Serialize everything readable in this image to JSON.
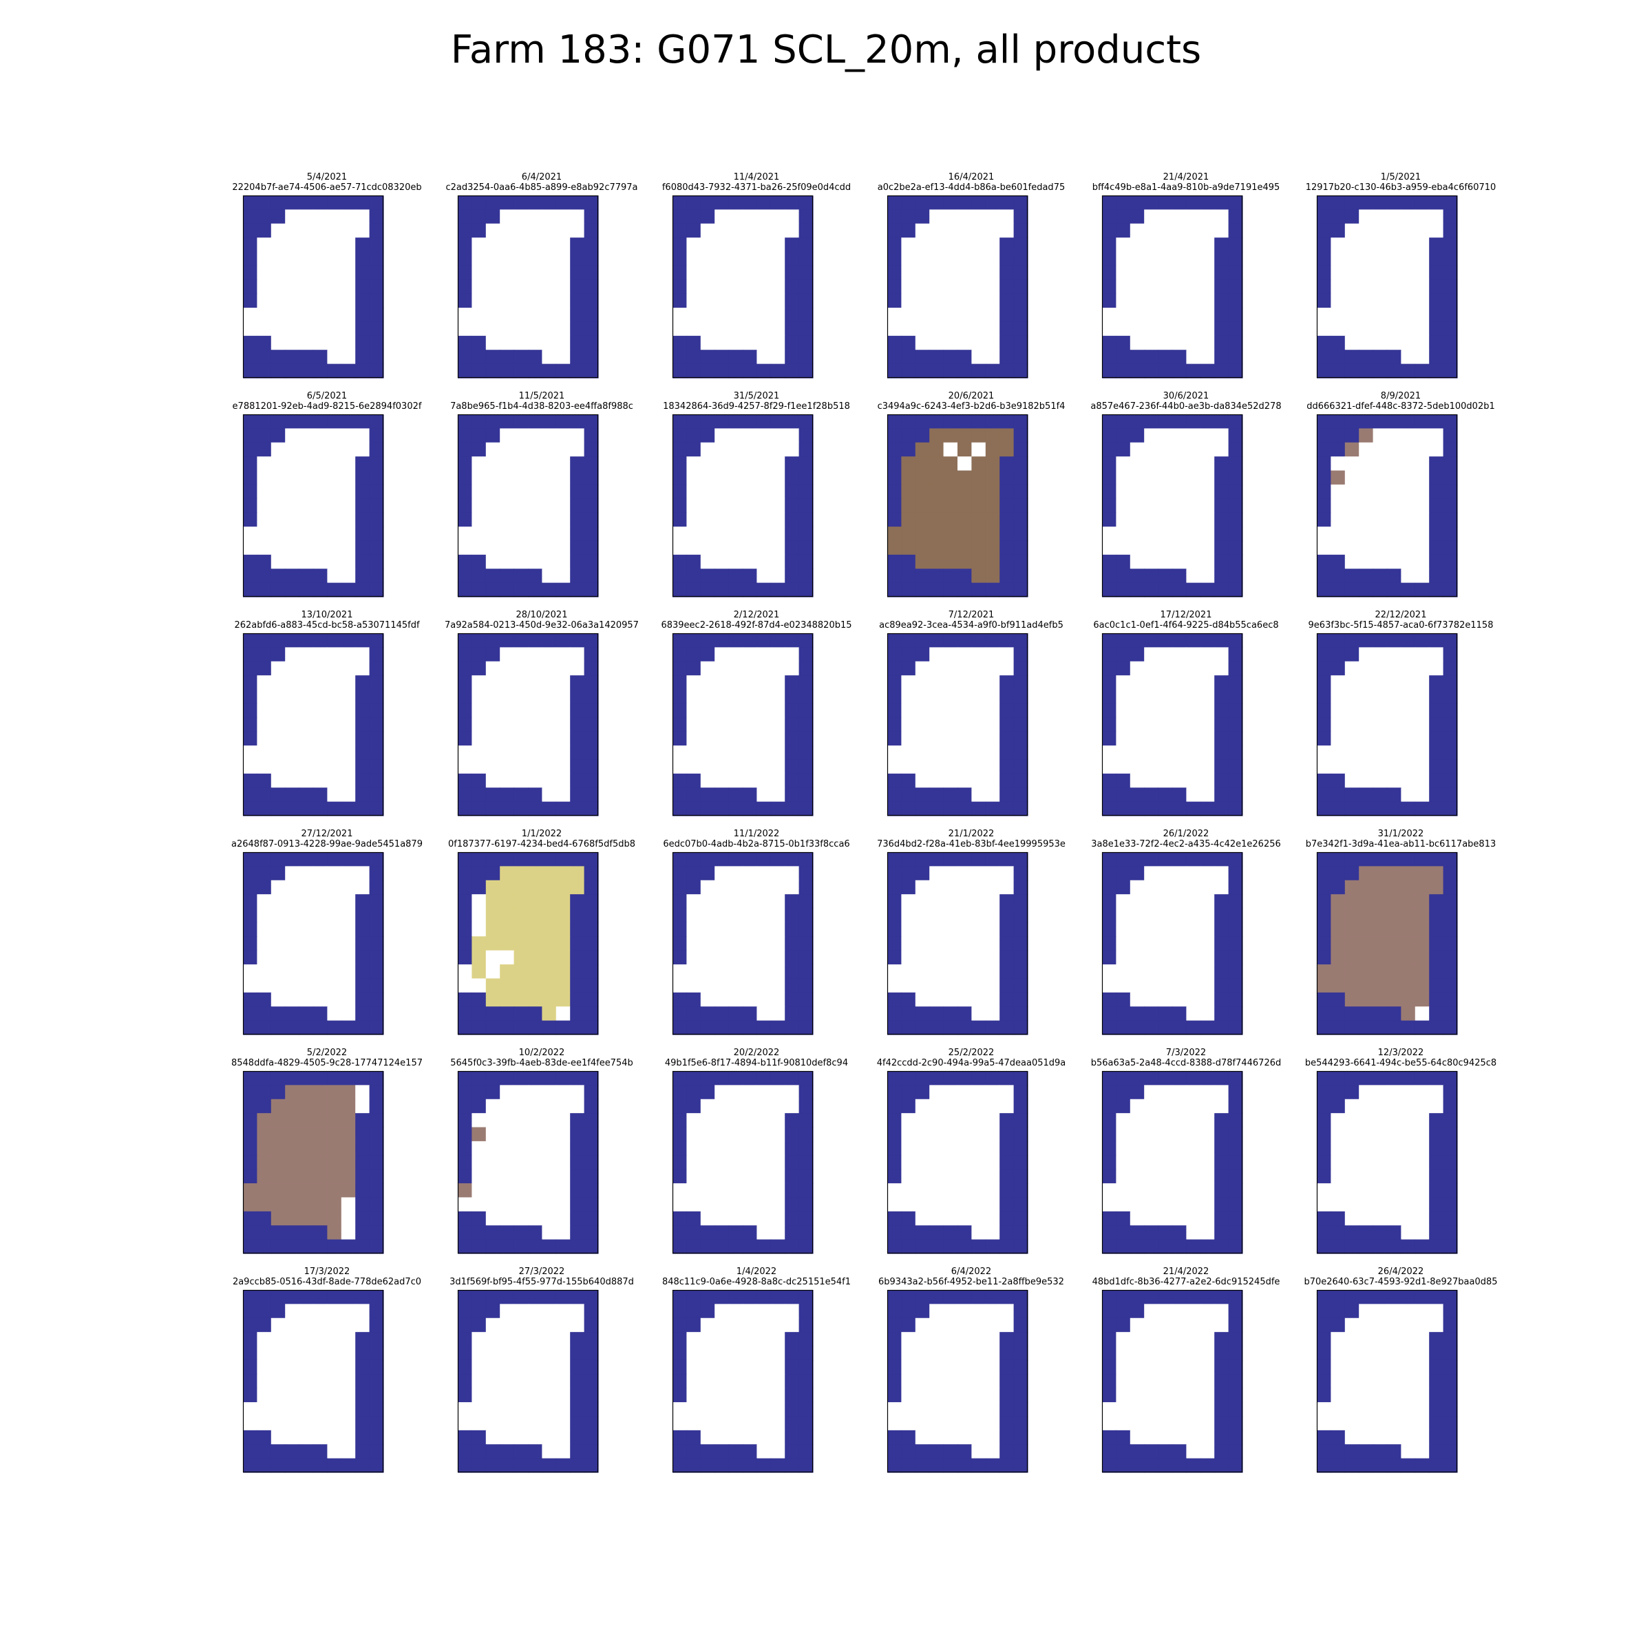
{
  "figure": {
    "title": "Farm 183: G071 SCL_20m, all products"
  },
  "chart_data": {
    "type": "heatmap",
    "grid": {
      "rows": 13,
      "cols": 10
    },
    "colors": {
      "background": "#ffffff",
      "nodata_outside_field": "#353597",
      "cloud_shadow_dark": "#8d6f57",
      "cloud_shadow_light": "#9a7b72",
      "high_probability_cloud": "#dcd287",
      "clear_inside_field": "#ffffff",
      "frame": "#000000"
    },
    "base_mask": [
      "BBBBBBBBBB",
      "BBBWWWWWWB",
      "BBWWWWWWWB",
      "BWWWWWWWBB",
      "BWWWWWWWBB",
      "BWWWWWWWBB",
      "BWWWWWWWBB",
      "BWWWWWWWBB",
      "WWWWWWWWBB",
      "WWWWWWWWBB",
      "BBWWWWWWBB",
      "BBBBBBWWBB",
      "BBBBBBBBBB"
    ],
    "panels": [
      {
        "date": "5/4/2021",
        "id": "22204b7f-ae74-4506-ae57-71cdc08320eb"
      },
      {
        "date": "6/4/2021",
        "id": "c2ad3254-0aa6-4b85-a899-e8ab92c7797a"
      },
      {
        "date": "11/4/2021",
        "id": "f6080d43-7932-4371-ba26-25f09e0d4cdd"
      },
      {
        "date": "16/4/2021",
        "id": "a0c2be2a-ef13-4dd4-b86a-be601fedad75"
      },
      {
        "date": "21/4/2021",
        "id": "bff4c49b-e8a1-4aa9-810b-a9de7191e495"
      },
      {
        "date": "1/5/2021",
        "id": "12917b20-c130-46b3-a959-eba4c6f60710"
      },
      {
        "date": "6/5/2021",
        "id": "e7881201-92eb-4ad9-8215-6e2894f0302f"
      },
      {
        "date": "11/5/2021",
        "id": "7a8be965-f1b4-4d38-8203-ee4ffa8f988c"
      },
      {
        "date": "31/5/2021",
        "id": "18342864-36d9-4257-8f29-f1ee1f28b518"
      },
      {
        "date": "20/6/2021",
        "id": "c3494a9c-6243-4ef3-b2d6-b3e9182b51f4",
        "mask": [
          "BBBBBBBBBB",
          "BBBCCCCCCB",
          "BBCCWCWCCB",
          "BCCCCWCCBB",
          "BCCCCCCCBB",
          "BCCCCCCCBB",
          "BCCCCCCCBB",
          "BCCCCCCCBB",
          "CCCCCCCCBB",
          "CCCCCCCCBB",
          "BBCCCCCCBB",
          "BBBBBBCCBB",
          "BBBBBBBBBB"
        ]
      },
      {
        "date": "30/6/2021",
        "id": "a857e467-236f-44b0-ae3b-da834e52d278"
      },
      {
        "date": "8/9/2021",
        "id": "dd666321-dfef-448c-8372-5deb100d02b1",
        "mask": [
          "BBBBBBBBBB",
          "BBBSWWWWWB",
          "BBSWWWWWWB",
          "BWWWWWWWBB",
          "BSWWWWWWBB",
          "BWWWWWWWBB",
          "BWWWWWWWBB",
          "BWWWWWWWBB",
          "WWWWWWWWBB",
          "WWWWWWWWBB",
          "BBWWWWWWBB",
          "BBBBBBWWBB",
          "BBBBBBBBBB"
        ]
      },
      {
        "date": "13/10/2021",
        "id": "262abfd6-a883-45cd-bc58-a53071145fdf"
      },
      {
        "date": "28/10/2021",
        "id": "7a92a584-0213-450d-9e32-06a3a1420957"
      },
      {
        "date": "2/12/2021",
        "id": "6839eec2-2618-492f-87d4-e02348820b15"
      },
      {
        "date": "7/12/2021",
        "id": "ac89ea92-3cea-4534-a9f0-bf911ad4efb5"
      },
      {
        "date": "17/12/2021",
        "id": "6ac0c1c1-0ef1-4f64-9225-d84b55ca6ec8"
      },
      {
        "date": "22/12/2021",
        "id": "9e63f3bc-5f15-4857-aca0-6f73782e1158"
      },
      {
        "date": "27/12/2021",
        "id": "a2648f87-0913-4228-99ae-9ade5451a879"
      },
      {
        "date": "1/1/2022",
        "id": "0f187377-6197-4234-bed4-6768f5df5db8",
        "mask": [
          "BBBBBBBBBB",
          "BBBYYYYYYB",
          "BBYYYYYYYB",
          "BWYYYYYYBB",
          "BWYYYYYYBB",
          "BWYYYYYYBB",
          "BYYYYYYYBB",
          "BYWWYYYYBB",
          "WYWYYYYYBB",
          "WWYYYYYYBB",
          "BBYYYYYYBB",
          "BBBBBBYWBB",
          "BBBBBBBBBB"
        ]
      },
      {
        "date": "11/1/2022",
        "id": "6edc07b0-4adb-4b2a-8715-0b1f33f8cca6"
      },
      {
        "date": "21/1/2022",
        "id": "736d4bd2-f28a-41eb-83bf-4ee19995953e"
      },
      {
        "date": "26/1/2022",
        "id": "3a8e1e33-72f2-4ec2-a435-4c42e1e26256"
      },
      {
        "date": "31/1/2022",
        "id": "b7e342f1-3d9a-41ea-ab11-bc6117abe813",
        "mask": [
          "BBBBBBBBBB",
          "BBBSSSSSSB",
          "BBSSSSSSSB",
          "BSSSSSSSBB",
          "BSSSSSSSBB",
          "BSSSSSSSBB",
          "BSSSSSSSBB",
          "BSSSSSSSBB",
          "SSSSSSSSBB",
          "SSSSSSSSBB",
          "BBSSSSSSBB",
          "BBBBBBSWBB",
          "BBBBBBBBBB"
        ]
      },
      {
        "date": "5/2/2022",
        "id": "8548ddfa-4829-4505-9c28-17747124e157",
        "mask": [
          "BBBBBBBBBB",
          "BBBSSSSSWB",
          "BBSSSSSSWB",
          "BSSSSSSSBB",
          "BSSSSSSSBB",
          "BSSSSSSSBB",
          "BSSSSSSSBB",
          "BSSSSSSSBB",
          "SSSSSSSSBB",
          "SSSSSSSWBB",
          "BBSSSSSWBB",
          "BBBBBBSWBB",
          "BBBBBBBBBB"
        ]
      },
      {
        "date": "10/2/2022",
        "id": "5645f0c3-39fb-4aeb-83de-ee1f4fee754b",
        "mask": [
          "BBBBBBBBBB",
          "BBBWWWWWWB",
          "BBWWWWWWWB",
          "BWWWWWWWBB",
          "BSWWWWWWBB",
          "BWWWWWWWBB",
          "BWWWWWWWBB",
          "BWWWWWWWBB",
          "SWWWWWWWBB",
          "WWWWWWWWBB",
          "BBWWWWWWBB",
          "BBBBBBWWBB",
          "BBBBBBBBBB"
        ]
      },
      {
        "date": "20/2/2022",
        "id": "49b1f5e6-8f17-4894-b11f-90810def8c94"
      },
      {
        "date": "25/2/2022",
        "id": "4f42ccdd-2c90-494a-99a5-47deaa051d9a"
      },
      {
        "date": "7/3/2022",
        "id": "b56a63a5-2a48-4ccd-8388-d78f7446726d"
      },
      {
        "date": "12/3/2022",
        "id": "be544293-6641-494c-be55-64c80c9425c8"
      },
      {
        "date": "17/3/2022",
        "id": "2a9ccb85-0516-43df-8ade-778de62ad7c0"
      },
      {
        "date": "27/3/2022",
        "id": "3d1f569f-bf95-4f55-977d-155b640d887d"
      },
      {
        "date": "1/4/2022",
        "id": "848c11c9-0a6e-4928-8a8c-dc25151e54f1"
      },
      {
        "date": "6/4/2022",
        "id": "6b9343a2-b56f-4952-be11-2a8ffbe9e532"
      },
      {
        "date": "21/4/2022",
        "id": "48bd1dfc-8b36-4277-a2e2-6dc915245dfe"
      },
      {
        "date": "26/4/2022",
        "id": "b70e2640-63c7-4593-92d1-8e927baa0d85"
      }
    ],
    "legend": ""
  }
}
